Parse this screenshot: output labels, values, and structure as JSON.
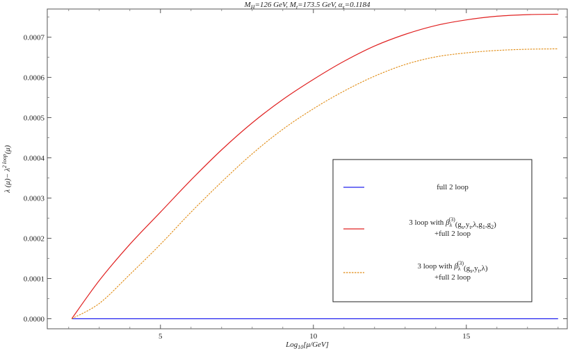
{
  "chart_data": {
    "type": "line",
    "title": "M_H=126 GeV,  M_t=173.5 GeV,  α_s=0.1184",
    "title_parts": [
      {
        "text": "M",
        "style": "italic"
      },
      {
        "text": "H",
        "style": "sub"
      },
      {
        "text": "=126 GeV,  ",
        "style": "italic"
      },
      {
        "text": "M",
        "style": "italic"
      },
      {
        "text": "t",
        "style": "sub"
      },
      {
        "text": "=173.5 GeV,  ",
        "style": "italic"
      },
      {
        "text": "α",
        "style": "italic"
      },
      {
        "text": "s",
        "style": "sub"
      },
      {
        "text": "=0.1184",
        "style": "italic"
      }
    ],
    "xlabel": "Log10[μ/GeV]",
    "xlabel_parts": [
      {
        "text": "Log",
        "style": "italic"
      },
      {
        "text": "10",
        "style": "sub"
      },
      {
        "text": "[μ/GeV]",
        "style": "italic"
      }
    ],
    "ylabel": "λ(μ)−λ^{2 loop}(μ)",
    "ylabel_parts": [
      {
        "text": "λ (μ)− λ",
        "style": "italic"
      },
      {
        "text": "2 loop",
        "style": "sup"
      },
      {
        "text": "(μ)",
        "style": "italic"
      }
    ],
    "xlim": [
      1.3,
      18.3
    ],
    "ylim": [
      -2.5e-05,
      0.00077
    ],
    "xticks": [
      5,
      10,
      15
    ],
    "xtick_labels": [
      "5",
      "10",
      "15"
    ],
    "yticks": [
      0,
      0.0001,
      0.0002,
      0.0003,
      0.0004,
      0.0005,
      0.0006,
      0.0007
    ],
    "ytick_labels": [
      "0.0000",
      "0.0001",
      "0.0002",
      "0.0003",
      "0.0004",
      "0.0005",
      "0.0006",
      "0.0007"
    ],
    "grid": false,
    "legend_position": "center-right",
    "series": [
      {
        "name": "full 2 loop",
        "color": "#2020ee",
        "dash": "solid",
        "x": [
          2.1,
          18
        ],
        "y": [
          0,
          0
        ]
      },
      {
        "name": "3 loop with β_λ^(3)(g_s,y_t,λ,g_1,g_2) +full 2 loop",
        "color": "#e02020",
        "dash": "solid",
        "x": [
          2.1,
          3,
          4,
          5,
          6,
          7,
          8,
          9,
          10,
          11,
          12,
          13,
          14,
          15,
          16,
          17,
          18
        ],
        "y": [
          0,
          9.5e-05,
          0.000185,
          0.000265,
          0.000345,
          0.00042,
          0.000487,
          0.000545,
          0.000595,
          0.00064,
          0.000678,
          0.000707,
          0.000729,
          0.000743,
          0.000752,
          0.000756,
          0.000757
        ]
      },
      {
        "name": "3 loop with β_λ^(3)(g_s,y_t,λ) +full 2 loop",
        "color": "#e08a10",
        "dash": "dashed",
        "x": [
          2.1,
          3,
          4,
          5,
          6,
          7,
          8,
          9,
          10,
          11,
          12,
          13,
          14,
          15,
          16,
          17,
          18
        ],
        "y": [
          0,
          3.8e-05,
          0.00011,
          0.000185,
          0.000265,
          0.00034,
          0.00041,
          0.000471,
          0.000522,
          0.000566,
          0.000603,
          0.000632,
          0.000651,
          0.000661,
          0.000667,
          0.00067,
          0.000671
        ]
      }
    ],
    "legend_entries": [
      {
        "lines": [
          [
            {
              "text": "full 2 loop",
              "style": "normal"
            }
          ]
        ]
      },
      {
        "lines": [
          [
            {
              "text": "3 loop with ",
              "style": "normal"
            },
            {
              "text": "β",
              "style": "italic"
            },
            {
              "text": "λ",
              "style": "sub"
            },
            {
              "text": "(3)",
              "style": "sup-shift"
            },
            {
              "text": "(g",
              "style": "normal"
            },
            {
              "text": "s",
              "style": "sub"
            },
            {
              "text": ",y",
              "style": "normal"
            },
            {
              "text": "t",
              "style": "sub"
            },
            {
              "text": ",λ,g",
              "style": "normal"
            },
            {
              "text": "1",
              "style": "sub"
            },
            {
              "text": ",g",
              "style": "normal"
            },
            {
              "text": "2",
              "style": "sub"
            },
            {
              "text": ")",
              "style": "normal"
            }
          ],
          [
            {
              "text": "+full 2 loop",
              "style": "normal"
            }
          ]
        ]
      },
      {
        "lines": [
          [
            {
              "text": "3 loop with ",
              "style": "normal"
            },
            {
              "text": "β",
              "style": "italic"
            },
            {
              "text": "λ",
              "style": "sub"
            },
            {
              "text": "(3)",
              "style": "sup-shift"
            },
            {
              "text": "(g",
              "style": "normal"
            },
            {
              "text": "s",
              "style": "sub"
            },
            {
              "text": ",y",
              "style": "normal"
            },
            {
              "text": "t",
              "style": "sub"
            },
            {
              "text": ",λ)",
              "style": "normal"
            }
          ],
          [
            {
              "text": "+full 2 loop",
              "style": "normal"
            }
          ]
        ]
      }
    ]
  }
}
